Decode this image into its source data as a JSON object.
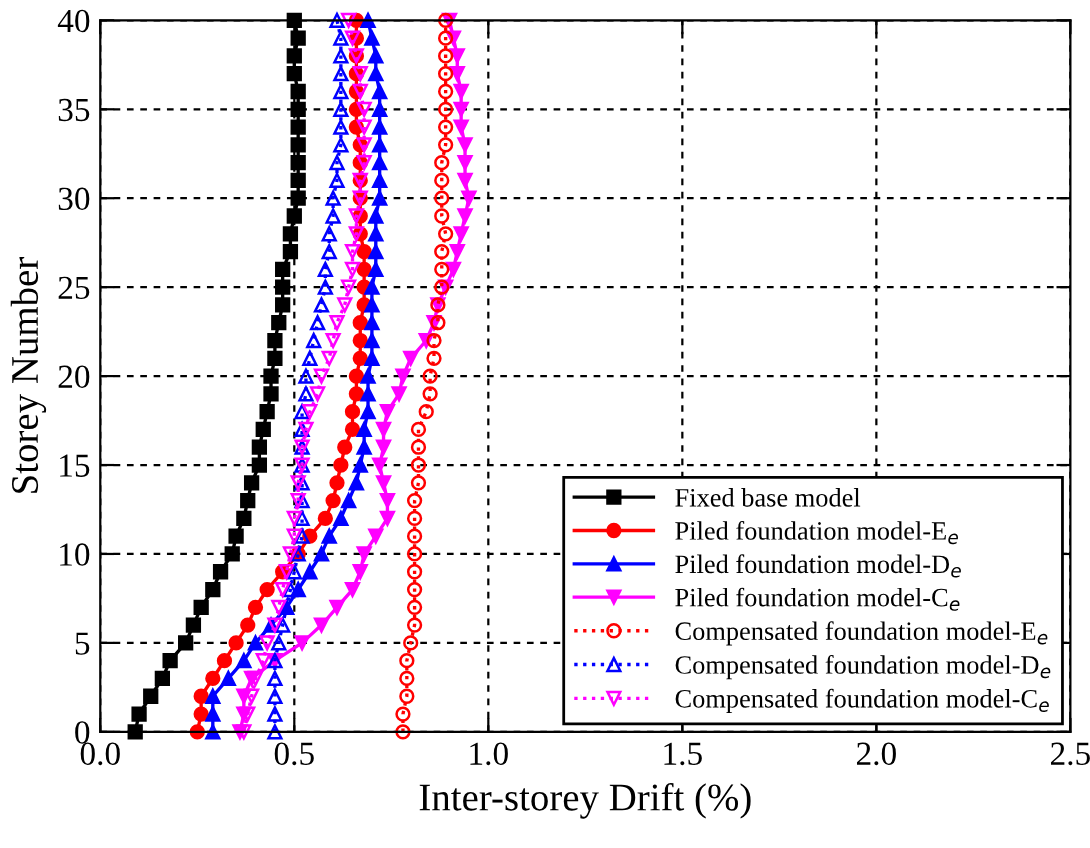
{
  "chart_data": {
    "type": "line",
    "xlabel": "Inter-storey Drift (%)",
    "ylabel": "Storey Number",
    "xlim": [
      0,
      2.5
    ],
    "xticks": [
      {
        "value": 0,
        "label": "0.0"
      },
      0.5,
      {
        "value": 1,
        "label": "1.0"
      },
      1.5,
      {
        "value": 2,
        "label": "2.0"
      },
      2.5
    ],
    "ylim": [
      0,
      40
    ],
    "yticks": [
      0,
      5,
      10,
      15,
      20,
      25,
      30,
      35,
      40
    ],
    "grid": true,
    "legend": "bottom right",
    "series": [
      {
        "name": "Fixed base model",
        "color": "#000000",
        "marker": "square",
        "line_style": "solid",
        "x": [
          0.09,
          0.1,
          0.13,
          0.16,
          0.18,
          0.22,
          0.24,
          0.26,
          0.29,
          0.31,
          0.34,
          0.35,
          0.37,
          0.38,
          0.39,
          0.41,
          0.41,
          0.42,
          0.43,
          0.44,
          0.44,
          0.45,
          0.45,
          0.46,
          0.47,
          0.47,
          0.47,
          0.49,
          0.49,
          0.5,
          0.51,
          0.51,
          0.51,
          0.51,
          0.51,
          0.51,
          0.51,
          0.5,
          0.5,
          0.51,
          0.5
        ],
        "values": [
          0,
          1,
          2,
          3,
          4,
          5,
          6,
          7,
          8,
          9,
          10,
          11,
          12,
          13,
          14,
          15,
          16,
          17,
          18,
          19,
          20,
          21,
          22,
          23,
          24,
          25,
          26,
          27,
          28,
          29,
          30,
          31,
          32,
          33,
          34,
          35,
          36,
          37,
          38,
          39,
          40
        ]
      },
      {
        "name": "Piled foundation model-E$_{e}$",
        "color": "#ff0000",
        "marker": "circle",
        "line_style": "solid",
        "x": [
          0.25,
          0.26,
          0.26,
          0.29,
          0.32,
          0.35,
          0.38,
          0.4,
          0.43,
          0.47,
          0.51,
          0.54,
          0.58,
          0.6,
          0.61,
          0.62,
          0.63,
          0.65,
          0.65,
          0.66,
          0.66,
          0.67,
          0.67,
          0.67,
          0.68,
          0.68,
          0.68,
          0.68,
          0.67,
          0.67,
          0.67,
          0.67,
          0.67,
          0.67,
          0.66,
          0.66,
          0.66,
          0.66,
          0.66,
          0.66,
          0.66
        ],
        "values": [
          0,
          1,
          2,
          3,
          4,
          5,
          6,
          7,
          8,
          9,
          10,
          11,
          12,
          13,
          14,
          15,
          16,
          17,
          18,
          19,
          20,
          21,
          22,
          23,
          24,
          25,
          26,
          27,
          28,
          29,
          30,
          31,
          32,
          33,
          34,
          35,
          36,
          37,
          38,
          39,
          40
        ]
      },
      {
        "name": "Piled foundation model-D$_{e}$",
        "color": "#0000ff",
        "marker": "triangle",
        "line_style": "solid",
        "x": [
          0.29,
          0.29,
          0.29,
          0.33,
          0.37,
          0.4,
          0.44,
          0.48,
          0.51,
          0.54,
          0.57,
          0.59,
          0.62,
          0.64,
          0.66,
          0.67,
          0.68,
          0.68,
          0.69,
          0.69,
          0.69,
          0.7,
          0.7,
          0.7,
          0.7,
          0.7,
          0.71,
          0.71,
          0.71,
          0.71,
          0.72,
          0.72,
          0.72,
          0.72,
          0.72,
          0.72,
          0.72,
          0.71,
          0.71,
          0.7,
          0.69
        ],
        "values": [
          0,
          1,
          2,
          3,
          4,
          5,
          6,
          7,
          8,
          9,
          10,
          11,
          12,
          13,
          14,
          15,
          16,
          17,
          18,
          19,
          20,
          21,
          22,
          23,
          24,
          25,
          26,
          27,
          28,
          29,
          30,
          31,
          32,
          33,
          34,
          35,
          36,
          37,
          38,
          39,
          40
        ]
      },
      {
        "name": "Piled foundation model-C$_{e}$",
        "color": "#ff00ff",
        "marker": "triangle_down",
        "line_style": "solid",
        "x": [
          0.36,
          0.37,
          0.37,
          0.39,
          0.45,
          0.52,
          0.57,
          0.61,
          0.65,
          0.67,
          0.68,
          0.71,
          0.74,
          0.74,
          0.73,
          0.72,
          0.73,
          0.73,
          0.74,
          0.77,
          0.78,
          0.8,
          0.84,
          0.86,
          0.87,
          0.89,
          0.91,
          0.92,
          0.93,
          0.94,
          0.95,
          0.94,
          0.94,
          0.94,
          0.93,
          0.93,
          0.93,
          0.92,
          0.92,
          0.91,
          0.9
        ],
        "values": [
          0,
          1,
          2,
          3,
          4,
          5,
          6,
          7,
          8,
          9,
          10,
          11,
          12,
          13,
          14,
          15,
          16,
          17,
          18,
          19,
          20,
          21,
          22,
          23,
          24,
          25,
          26,
          27,
          28,
          29,
          30,
          31,
          32,
          33,
          34,
          35,
          36,
          37,
          38,
          39,
          40
        ]
      },
      {
        "name": "Compensated foundation model-E$_{e}$",
        "color": "#ff0000",
        "marker": "circle",
        "line_style": "dotted",
        "x": [
          0.78,
          0.78,
          0.79,
          0.79,
          0.79,
          0.8,
          0.81,
          0.81,
          0.81,
          0.81,
          0.81,
          0.81,
          0.81,
          0.81,
          0.82,
          0.82,
          0.82,
          0.82,
          0.84,
          0.85,
          0.85,
          0.86,
          0.86,
          0.87,
          0.87,
          0.88,
          0.88,
          0.88,
          0.89,
          0.88,
          0.88,
          0.88,
          0.88,
          0.89,
          0.89,
          0.89,
          0.89,
          0.89,
          0.89,
          0.89,
          0.89
        ],
        "values": [
          0,
          1,
          2,
          3,
          4,
          5,
          6,
          7,
          8,
          9,
          10,
          11,
          12,
          13,
          14,
          15,
          16,
          17,
          18,
          19,
          20,
          21,
          22,
          23,
          24,
          25,
          26,
          27,
          28,
          29,
          30,
          31,
          32,
          33,
          34,
          35,
          36,
          37,
          38,
          39,
          40
        ]
      },
      {
        "name": "Compensated foundation model-D$_{e}$",
        "color": "#0000ff",
        "marker": "triangle",
        "line_style": "dotted",
        "x": [
          0.45,
          0.45,
          0.45,
          0.45,
          0.45,
          0.46,
          0.47,
          0.48,
          0.49,
          0.5,
          0.51,
          0.52,
          0.52,
          0.52,
          0.52,
          0.52,
          0.52,
          0.52,
          0.52,
          0.53,
          0.53,
          0.54,
          0.55,
          0.56,
          0.57,
          0.58,
          0.58,
          0.59,
          0.59,
          0.6,
          0.6,
          0.61,
          0.61,
          0.62,
          0.62,
          0.62,
          0.62,
          0.62,
          0.62,
          0.62,
          0.61
        ],
        "values": [
          0,
          1,
          2,
          3,
          4,
          5,
          6,
          7,
          8,
          9,
          10,
          11,
          12,
          13,
          14,
          15,
          16,
          17,
          18,
          19,
          20,
          21,
          22,
          23,
          24,
          25,
          26,
          27,
          28,
          29,
          30,
          31,
          32,
          33,
          34,
          35,
          36,
          37,
          38,
          39,
          40
        ]
      },
      {
        "name": "Compensated foundation model-C$_{e}$",
        "color": "#ff00ff",
        "marker": "triangle_down",
        "line_style": "dotted",
        "x": [
          0.37,
          0.38,
          0.39,
          0.4,
          0.42,
          0.43,
          0.45,
          0.46,
          0.47,
          0.48,
          0.49,
          0.5,
          0.5,
          0.51,
          0.51,
          0.52,
          0.52,
          0.53,
          0.54,
          0.56,
          0.57,
          0.59,
          0.6,
          0.61,
          0.63,
          0.64,
          0.65,
          0.65,
          0.66,
          0.66,
          0.67,
          0.67,
          0.68,
          0.68,
          0.68,
          0.68,
          0.67,
          0.67,
          0.66,
          0.65,
          0.64
        ],
        "values": [
          0,
          1,
          2,
          3,
          4,
          5,
          6,
          7,
          8,
          9,
          10,
          11,
          12,
          13,
          14,
          15,
          16,
          17,
          18,
          19,
          20,
          21,
          22,
          23,
          24,
          25,
          26,
          27,
          28,
          29,
          30,
          31,
          32,
          33,
          34,
          35,
          36,
          37,
          38,
          39,
          40
        ]
      }
    ]
  }
}
